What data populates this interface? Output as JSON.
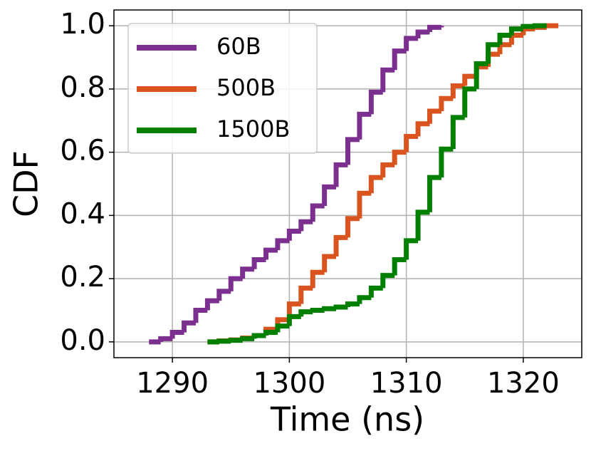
{
  "chart_data": {
    "type": "step",
    "xlabel": "Time (ns)",
    "ylabel": "CDF",
    "xlim": [
      1285,
      1325
    ],
    "ylim": [
      -0.05,
      1.05
    ],
    "xticks": [
      1290,
      1300,
      1310,
      1320
    ],
    "yticks": [
      {
        "value": 0,
        "label": "0.0"
      },
      {
        "value": 0.2,
        "label": "0.2"
      },
      {
        "value": 0.4,
        "label": "0.4"
      },
      {
        "value": 0.6,
        "label": "0.6"
      },
      {
        "value": 0.8,
        "label": "0.8"
      },
      {
        "value": 1,
        "label": "1.0"
      }
    ],
    "grid": true,
    "legend": "upper left",
    "series": [
      {
        "name": "60B",
        "color": "#7b2f8e",
        "x": [
          1288,
          1289,
          1290,
          1291,
          1292,
          1293,
          1294,
          1295,
          1296,
          1297,
          1298,
          1299,
          1300,
          1301,
          1302,
          1303,
          1304,
          1305,
          1306,
          1307,
          1308,
          1309,
          1310,
          1311,
          1312,
          1313
        ],
        "values": [
          0,
          0.01,
          0.03,
          0.06,
          0.1,
          0.13,
          0.16,
          0.2,
          0.23,
          0.26,
          0.29,
          0.32,
          0.35,
          0.38,
          0.43,
          0.49,
          0.56,
          0.64,
          0.72,
          0.79,
          0.86,
          0.92,
          0.96,
          0.98,
          0.995,
          1.0
        ]
      },
      {
        "name": "500B",
        "color": "#d9541e",
        "x": [
          1293,
          1294,
          1295,
          1296,
          1297,
          1298,
          1299,
          1300,
          1301,
          1302,
          1303,
          1304,
          1305,
          1306,
          1307,
          1308,
          1309,
          1310,
          1311,
          1312,
          1313,
          1314,
          1315,
          1316,
          1317,
          1318,
          1319,
          1320,
          1321,
          1322,
          1323
        ],
        "values": [
          0,
          0.003,
          0.006,
          0.012,
          0.02,
          0.04,
          0.07,
          0.12,
          0.17,
          0.22,
          0.27,
          0.33,
          0.39,
          0.47,
          0.52,
          0.56,
          0.6,
          0.65,
          0.69,
          0.73,
          0.77,
          0.81,
          0.84,
          0.87,
          0.91,
          0.94,
          0.97,
          0.99,
          0.995,
          1.0,
          1.0
        ]
      },
      {
        "name": "1500B",
        "color": "#007f00",
        "x": [
          1293,
          1294,
          1295,
          1296,
          1297,
          1298,
          1299,
          1300,
          1301,
          1302,
          1303,
          1304,
          1305,
          1306,
          1307,
          1308,
          1309,
          1310,
          1311,
          1312,
          1313,
          1314,
          1315,
          1316,
          1317,
          1318,
          1319,
          1320,
          1321,
          1322
        ],
        "values": [
          0,
          0.002,
          0.005,
          0.01,
          0.02,
          0.03,
          0.05,
          0.08,
          0.095,
          0.1,
          0.105,
          0.11,
          0.12,
          0.14,
          0.17,
          0.21,
          0.26,
          0.32,
          0.41,
          0.52,
          0.61,
          0.71,
          0.8,
          0.88,
          0.94,
          0.97,
          0.99,
          0.998,
          1.0,
          1.0
        ]
      }
    ]
  }
}
